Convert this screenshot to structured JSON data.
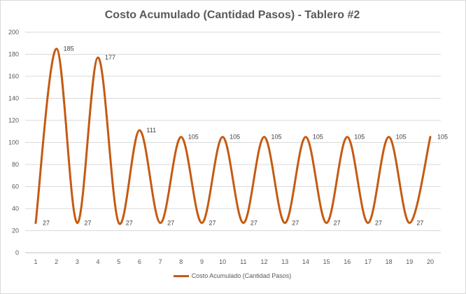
{
  "chart_data": {
    "type": "line",
    "title": "Costo Acumulado (Cantidad Pasos) - Tablero #2",
    "xlabel": "",
    "ylabel": "",
    "x": [
      1,
      2,
      3,
      4,
      5,
      6,
      7,
      8,
      9,
      10,
      11,
      12,
      13,
      14,
      15,
      16,
      17,
      18,
      19,
      20
    ],
    "ylim": [
      0,
      200
    ],
    "yticks": [
      0,
      20,
      40,
      60,
      80,
      100,
      120,
      140,
      160,
      180,
      200
    ],
    "grid": true,
    "legend_position": "bottom",
    "series": [
      {
        "name": "Costo Acumulado (Cantidad Pasos)",
        "color": "#c55a11",
        "values": [
          27,
          185,
          27,
          177,
          27,
          111,
          27,
          105,
          27,
          105,
          27,
          105,
          27,
          105,
          27,
          105,
          27,
          105,
          27,
          105
        ]
      }
    ]
  }
}
